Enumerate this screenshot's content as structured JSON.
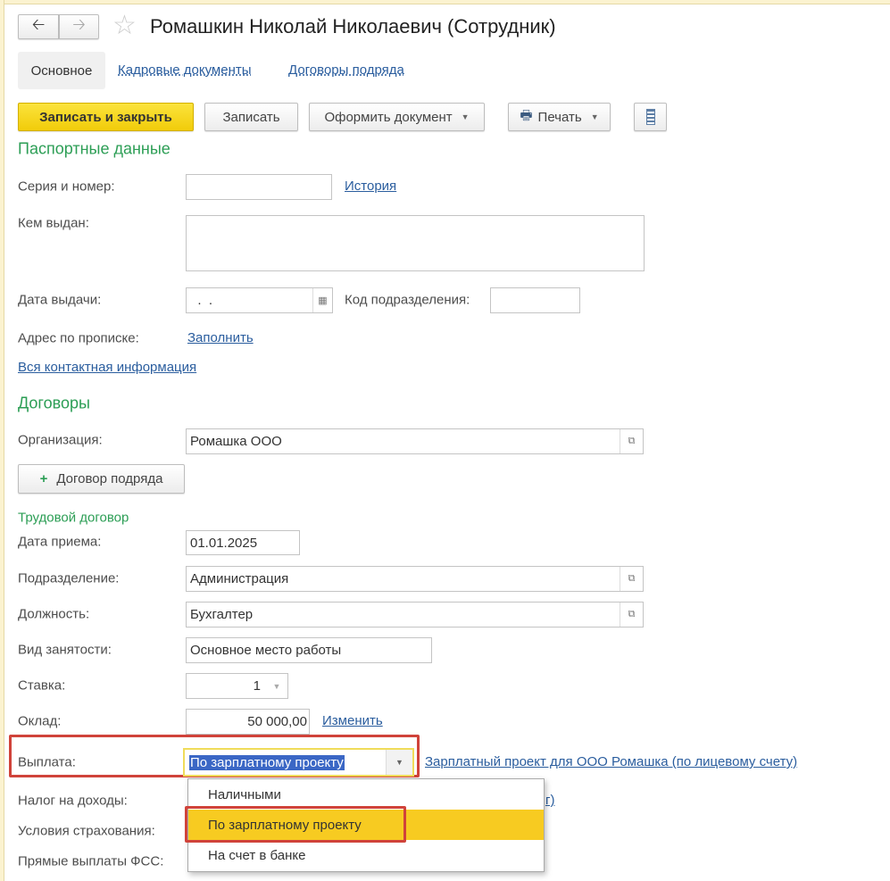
{
  "header": {
    "title": "Ромашкин Николай Николаевич (Сотрудник)"
  },
  "tabs": [
    {
      "label": "Основное",
      "active": true
    },
    {
      "label": "Кадровые документы"
    },
    {
      "label": "Договоры подряда"
    }
  ],
  "toolbar": {
    "save_close": "Записать и закрыть",
    "save": "Записать",
    "create_doc": "Оформить документ",
    "print": "Печать"
  },
  "passport": {
    "title": "Паспортные данные",
    "series_label": "Серия и номер:",
    "series_value": "",
    "history_link": "История",
    "issued_by_label": "Кем выдан:",
    "issued_by_value": "",
    "issue_date_label": "Дата выдачи:",
    "issue_date_value": "  .  .",
    "dept_code_label": "Код подразделения:",
    "dept_code_value": "",
    "address_label": "Адрес по прописке:",
    "address_link": "Заполнить",
    "contact_link": "Вся контактная информация"
  },
  "contracts": {
    "title": "Договоры",
    "org_label": "Организация:",
    "org_value": "Ромашка ООО",
    "gph_button": "Договор подряда"
  },
  "labor": {
    "title": "Трудовой договор",
    "hire_date_label": "Дата приема:",
    "hire_date": "01.01.2025",
    "dept_label": "Подразделение:",
    "dept": "Администрация",
    "position_label": "Должность:",
    "position": "Бухгалтер",
    "employment_label": "Вид занятости:",
    "employment": "Основное место работы",
    "rate_label": "Ставка:",
    "rate": "1",
    "salary_label": "Оклад:",
    "salary": "50 000,00",
    "salary_change_link": "Изменить",
    "payment_label": "Выплата:",
    "payment_value": "По зарплатному проекту",
    "payment_link": "Зарплатный проект для ООО Ромашка (по лицевому счету)",
    "tax_label": "Налог на доходы:",
    "tax_link_fragment": "г)",
    "insurance_label": "Условия страхования:",
    "fss_label": "Прямые выплаты ФСС:"
  },
  "dropdown": {
    "options": [
      "Наличными",
      "По зарплатному проекту",
      "На счет в банке"
    ],
    "selected_index": 1
  },
  "colors": {
    "accent_green": "#2c9e55",
    "highlight_red": "#d0433a",
    "selected_yellow": "#f7cb21",
    "link_blue": "#2a5d9e"
  }
}
